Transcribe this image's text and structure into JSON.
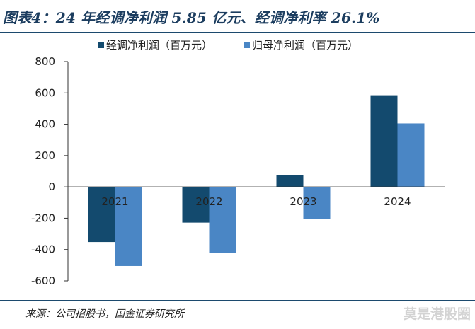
{
  "title": "图表4：24 年经调净利润 5.85 亿元、经调净利率 26.1%",
  "source": "来源：公司招股书，国金证券研究所",
  "watermark": "莫是港股圈",
  "colors": {
    "series1": "#134a6e",
    "series2": "#4a86c5",
    "rule": "#1c4a6e",
    "title": "#1c3d5f"
  },
  "chart_data": {
    "type": "bar",
    "categories": [
      "2021",
      "2022",
      "2023",
      "2024"
    ],
    "series": [
      {
        "name": "经调净利润（百万元）",
        "values": [
          -352,
          -228,
          75,
          585
        ]
      },
      {
        "name": "归母净利润（百万元）",
        "values": [
          -505,
          -420,
          -205,
          405
        ]
      }
    ],
    "ylim": [
      -600,
      800
    ],
    "yticks": [
      800,
      600,
      400,
      200,
      0,
      -200,
      -400,
      -600
    ],
    "ytick_labels": [
      "800",
      "600",
      "400",
      "200",
      "0",
      "-200",
      "-400",
      "-600"
    ],
    "legend_position": "top",
    "grid": false
  }
}
